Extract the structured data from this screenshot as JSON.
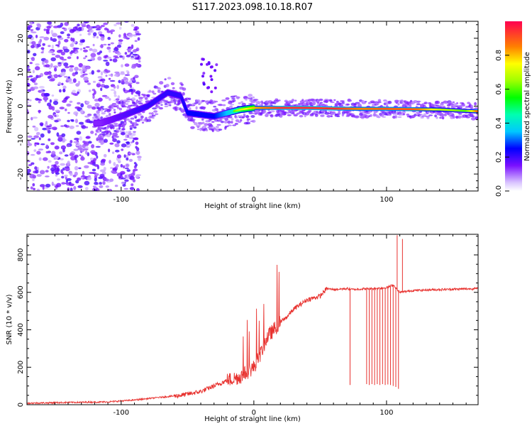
{
  "title": "S117.2023.098.10.18.R07",
  "chart_data": [
    {
      "type": "heatmap",
      "xlabel": "Height of straight line (km)",
      "ylabel": "Frequency (Hz)",
      "xlim": [
        -171,
        169
      ],
      "ylim": [
        -25,
        25
      ],
      "xticks": [
        -100,
        0,
        100
      ],
      "yticks": [
        -20,
        -10,
        0,
        10,
        20
      ],
      "colorbar": {
        "label": "Normalized spectral amplitude",
        "range": [
          0,
          1
        ],
        "ticks": [
          "0.0",
          "0.2",
          "0.4",
          "0.6",
          "0.8"
        ]
      },
      "ridge": {
        "description_points_x": [
          -115,
          -100,
          -80,
          -65,
          -55,
          -50,
          -30,
          -20,
          -10,
          0,
          20,
          40,
          60,
          80,
          100,
          120,
          140,
          160,
          169
        ],
        "frequency": [
          -5,
          -3,
          0,
          4,
          3,
          -2,
          -3,
          -2,
          -1,
          -0.5,
          -0.5,
          -0.5,
          -0.7,
          -0.8,
          -0.8,
          -0.9,
          -1.0,
          -1.4,
          -1.5
        ],
        "amplitude": [
          0.2,
          0.25,
          0.3,
          0.3,
          0.3,
          0.35,
          0.35,
          0.5,
          0.7,
          0.8,
          0.95,
          0.95,
          0.95,
          0.85,
          0.9,
          0.9,
          0.7,
          0.6,
          0.9
        ]
      }
    },
    {
      "type": "line",
      "xlabel": "Height of straight line (km)",
      "ylabel": "SNR (10 * v/v)",
      "xlim": [
        -171,
        169
      ],
      "ylim": [
        0,
        910
      ],
      "xticks": [
        -100,
        0,
        100
      ],
      "yticks": [
        0,
        200,
        400,
        600,
        800
      ],
      "color": "#e8322f",
      "series": [
        {
          "x": [
            -171,
            -140,
            -110,
            -90,
            -70,
            -55,
            -40,
            -30,
            -20,
            -10,
            0,
            5,
            10,
            15,
            20,
            25,
            30,
            40,
            50,
            55,
            60,
            70,
            75,
            80,
            90,
            100,
            105,
            110,
            120,
            140,
            169
          ],
          "y": [
            8,
            12,
            15,
            25,
            40,
            50,
            70,
            100,
            130,
            150,
            200,
            270,
            360,
            400,
            440,
            470,
            510,
            560,
            580,
            620,
            615,
            620,
            615,
            618,
            620,
            625,
            640,
            600,
            610,
            615,
            620
          ]
        }
      ],
      "dropouts": [
        {
          "x": 72.5,
          "y": 105
        },
        {
          "x": 85,
          "y": 110
        },
        {
          "x": 87,
          "y": 105
        },
        {
          "x": 89,
          "y": 110
        },
        {
          "x": 91,
          "y": 105
        },
        {
          "x": 93,
          "y": 110
        },
        {
          "x": 95,
          "y": 105
        },
        {
          "x": 97,
          "y": 110
        },
        {
          "x": 99,
          "y": 105
        },
        {
          "x": 101,
          "y": 108
        },
        {
          "x": 103,
          "y": 105
        },
        {
          "x": 105,
          "y": 100
        },
        {
          "x": 107,
          "y": 95
        },
        {
          "x": 109,
          "y": 85
        }
      ],
      "spikes": [
        {
          "x": 108,
          "y": 905
        },
        {
          "x": 112,
          "y": 885
        }
      ]
    }
  ]
}
